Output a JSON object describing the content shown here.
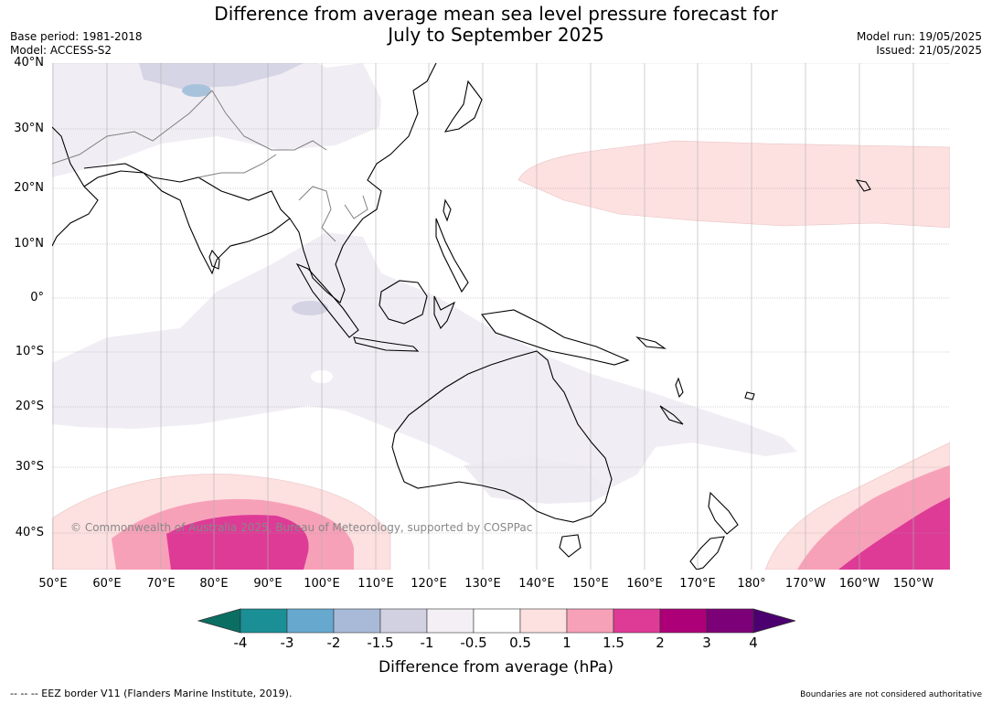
{
  "title": {
    "line1": "Difference from average mean sea level pressure forecast for",
    "line2": "July to September 2025"
  },
  "meta": {
    "base_period": "Base period: 1981-2018",
    "model": "Model: ACCESS-S2",
    "model_run": "Model run: 19/05/2025",
    "issued": "Issued: 21/05/2025"
  },
  "latitudes": [
    "40°N",
    "30°N",
    "20°N",
    "10°N",
    "0°",
    "10°S",
    "20°S",
    "30°S",
    "40°S"
  ],
  "longitudes": [
    "50°E",
    "60°E",
    "70°E",
    "80°E",
    "90°E",
    "100°E",
    "110°E",
    "120°E",
    "130°E",
    "140°E",
    "150°E",
    "160°E",
    "170°E",
    "180°",
    "170°W",
    "160°W",
    "150°W"
  ],
  "copyright": "© Commonwealth of Australia 2025, Bureau of Meteorology, supported by COSPPac",
  "colorbar": {
    "title": "Difference from average (hPa)",
    "labels": [
      "-4",
      "-3",
      "-2",
      "-1.5",
      "-1",
      "-0.5",
      "0.5",
      "1",
      "1.5",
      "2",
      "3",
      "4"
    ],
    "colors": [
      "#0b6e63",
      "#1a8f95",
      "#67a8cf",
      "#a9bad9",
      "#d1d1e2",
      "#f3eff5",
      "#ffffff",
      "#fde0e0",
      "#f7a1b8",
      "#de3b97",
      "#ad0078",
      "#7c0078",
      "#4c0070"
    ]
  },
  "footer": {
    "left": "--  --  -- EEZ border V11 (Flanders Marine Institute, 2019).",
    "right": "Boundaries are not considered authoritative"
  }
}
